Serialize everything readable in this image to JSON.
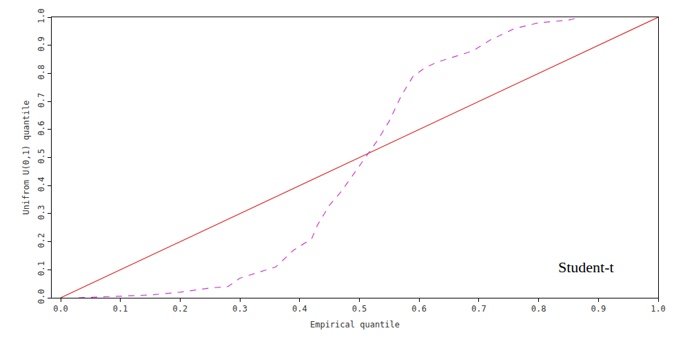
{
  "chart_data": {
    "type": "line",
    "xlabel": "Empirical quantile",
    "ylabel": "Unifrom U(0,1) quantile",
    "xlim": [
      -0.015,
      1.0
    ],
    "ylim": [
      0,
      1.0
    ],
    "xticks": [
      {
        "value": 0,
        "label": "0.0"
      },
      0.1,
      0.2,
      0.3,
      0.4,
      0.5,
      0.6,
      0.7,
      0.8,
      0.9,
      {
        "value": 1,
        "label": "1.0"
      }
    ],
    "yticks": [
      {
        "value": 0,
        "label": "0.0"
      },
      0.1,
      0.2,
      0.3,
      0.4,
      0.5,
      0.6,
      0.7,
      0.8,
      0.9,
      {
        "value": 1,
        "label": "1.0"
      }
    ],
    "grid": false,
    "series": [
      {
        "color": "#e02020",
        "line_style": "solid",
        "x": [
          0,
          1
        ],
        "values": [
          0,
          1
        ]
      },
      {
        "color": "#cc33cc",
        "line_style": "dashed",
        "x": [
          0.03,
          0.1,
          0.15,
          0.2,
          0.25,
          0.28,
          0.3,
          0.33,
          0.36,
          0.37,
          0.39,
          0.42,
          0.43,
          0.45,
          0.47,
          0.49,
          0.51,
          0.53,
          0.55,
          0.57,
          0.59,
          0.61,
          0.63,
          0.66,
          0.69,
          0.72,
          0.76,
          0.8,
          0.85,
          0.87
        ],
        "values": [
          0.0,
          0.005,
          0.01,
          0.02,
          0.035,
          0.04,
          0.07,
          0.09,
          0.11,
          0.13,
          0.17,
          0.21,
          0.26,
          0.33,
          0.38,
          0.44,
          0.5,
          0.56,
          0.63,
          0.72,
          0.79,
          0.82,
          0.84,
          0.86,
          0.88,
          0.92,
          0.96,
          0.98,
          0.99,
          1.0
        ]
      }
    ],
    "annotations": [
      {
        "text": "Student-t",
        "x": 0.88,
        "y": 0.11
      }
    ]
  }
}
